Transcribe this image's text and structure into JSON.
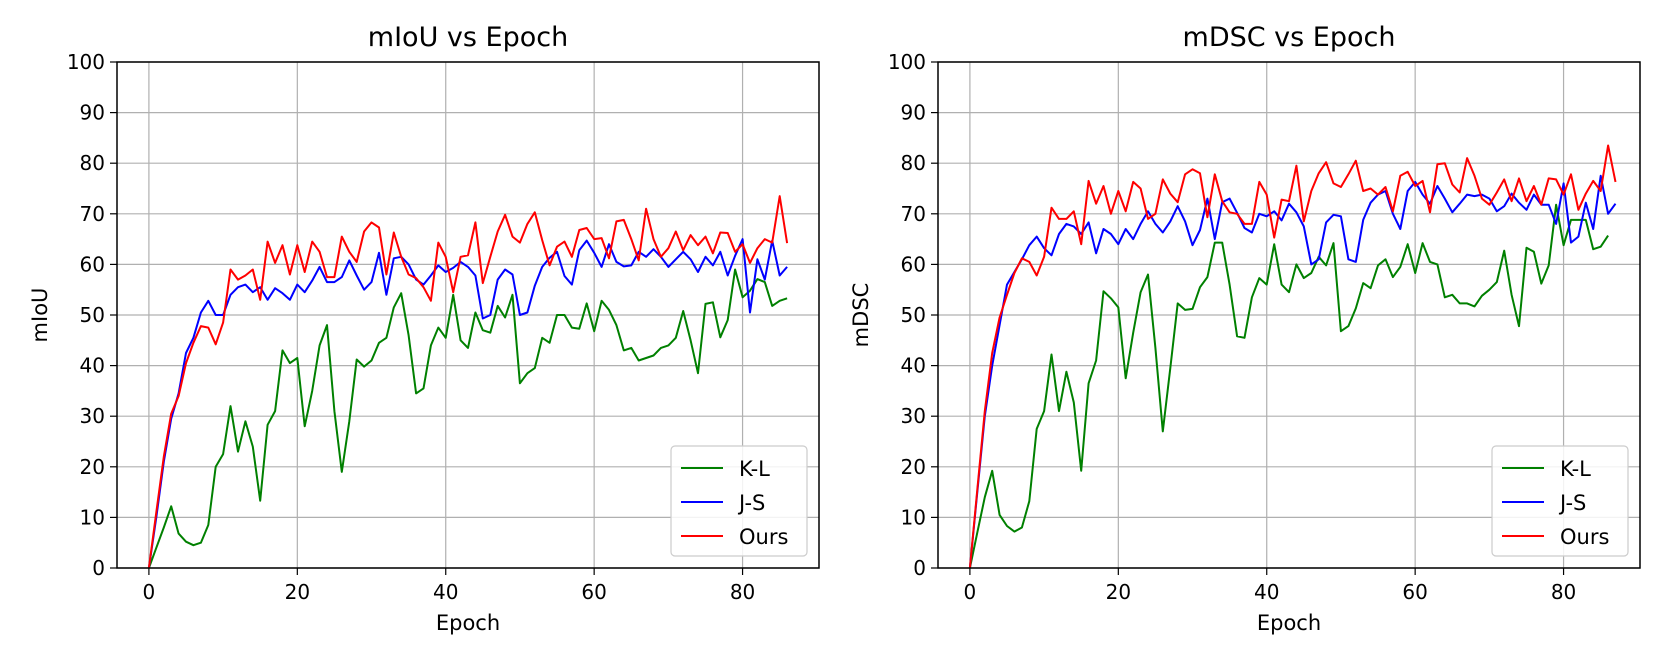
{
  "figure": {
    "background": "#ffffff",
    "grid": true,
    "grid_color": "#b0b0b0"
  },
  "chart_data": [
    {
      "type": "line",
      "title": "mIoU vs Epoch",
      "xlabel": "Epoch",
      "ylabel": "mIoU",
      "xlim": [
        -4.3,
        90.3
      ],
      "ylim": [
        0,
        100
      ],
      "xticks": [
        0,
        20,
        40,
        60,
        80
      ],
      "yticks": [
        0,
        10,
        20,
        30,
        40,
        50,
        60,
        70,
        80,
        90,
        100
      ],
      "legend": "lower-right",
      "series": [
        {
          "name": "K-L",
          "color": "#008000",
          "values": [
            0,
            4,
            8,
            12.2,
            6.8,
            5.2,
            4.5,
            5,
            8.5,
            20,
            22.5,
            32,
            23,
            29,
            24,
            13.3,
            28.3,
            31,
            43,
            40.5,
            41.5,
            28,
            35,
            44,
            48,
            31,
            19,
            29,
            41.2,
            39.8,
            41,
            44.5,
            45.5,
            51.5,
            54.3,
            46,
            34.5,
            35.5,
            44,
            47.5,
            45.5,
            54,
            45,
            43.5,
            50.5,
            47,
            46.5,
            51.8,
            49.5,
            54,
            36.5,
            38.5,
            39.5,
            45.5,
            44.5,
            50,
            50,
            47.5,
            47.3,
            52.3,
            46.8,
            52.8,
            51,
            48,
            43,
            43.5,
            41,
            41.5,
            42,
            43.5,
            44,
            45.5,
            50.8,
            45,
            38.5,
            52.2,
            52.5,
            45.6,
            49,
            59,
            53.5,
            54.8,
            57.1,
            56.5,
            51.8,
            52.8,
            53.3
          ]
        },
        {
          "name": "J-S",
          "color": "#0000ff",
          "values": [
            0,
            10,
            21,
            29.5,
            34.5,
            42.5,
            45.5,
            50.5,
            52.8,
            50,
            50,
            54,
            55.5,
            56,
            54.5,
            55.5,
            53,
            55.3,
            54.3,
            53,
            56,
            54.5,
            56.8,
            59.5,
            56.5,
            56.5,
            57.5,
            60.8,
            57.8,
            55,
            56.5,
            62.3,
            54,
            61.2,
            61.5,
            60,
            57,
            56,
            57.8,
            59.8,
            58.5,
            59.3,
            60.5,
            59.5,
            57.8,
            49.3,
            50,
            57,
            59,
            58,
            50,
            50.5,
            55.8,
            59.5,
            61.3,
            62.5,
            57.7,
            56,
            62.8,
            64.7,
            62.3,
            59.5,
            64,
            60.5,
            59.6,
            59.8,
            62.5,
            61.5,
            63,
            61.5,
            59.5,
            61,
            62.5,
            61,
            58.5,
            61.5,
            59.8,
            62.5,
            57.8,
            61.7,
            65,
            50.5,
            61,
            57,
            64.7,
            57.8,
            59.5
          ]
        },
        {
          "name": "Ours",
          "color": "#ff0000",
          "values": [
            0,
            11,
            22,
            30.5,
            34,
            40.5,
            44.5,
            47.8,
            47.5,
            44.2,
            48.5,
            59,
            57,
            57.8,
            59,
            53,
            64.5,
            60.3,
            63.8,
            58,
            63.8,
            58.5,
            64.5,
            62.5,
            57.5,
            57.5,
            65.5,
            62.5,
            60.5,
            66.5,
            68.3,
            67.3,
            58,
            66.3,
            61.5,
            58,
            57.3,
            55.5,
            52.8,
            64.3,
            61.5,
            54.5,
            61.5,
            61.8,
            68.3,
            56.3,
            61.5,
            66.5,
            69.8,
            65.5,
            64.3,
            68,
            70.3,
            64.8,
            59.8,
            63.5,
            64.5,
            61.5,
            66.8,
            67.2,
            65,
            65.2,
            61.2,
            68.5,
            68.8,
            65,
            60.8,
            71,
            65,
            61.5,
            63.2,
            66.5,
            62.8,
            65.8,
            63.8,
            65.5,
            62.2,
            66.3,
            66.2,
            62.5,
            64,
            60.3,
            63.2,
            65,
            64.3,
            73.5,
            64.2
          ]
        }
      ]
    },
    {
      "type": "line",
      "title": "mDSC vs Epoch",
      "xlabel": "Epoch",
      "ylabel": "mDSC",
      "xlim": [
        -4.3,
        90.3
      ],
      "ylim": [
        0,
        100
      ],
      "xticks": [
        0,
        20,
        40,
        60,
        80
      ],
      "yticks": [
        0,
        10,
        20,
        30,
        40,
        50,
        60,
        70,
        80,
        90,
        100
      ],
      "legend": "lower-right",
      "series": [
        {
          "name": "K-L",
          "color": "#008000",
          "values": [
            0,
            7,
            14,
            19.2,
            10.5,
            8.3,
            7.2,
            8,
            13.2,
            27.5,
            31,
            42.2,
            31,
            38.8,
            32.7,
            19.2,
            36.5,
            41,
            54.7,
            53.3,
            51.5,
            37.5,
            46.5,
            54.5,
            58,
            43.5,
            27,
            39.5,
            52.3,
            51,
            51.2,
            55.5,
            57.5,
            64.3,
            64.3,
            56,
            45.8,
            45.5,
            53.5,
            57.3,
            56,
            64,
            56,
            54.5,
            60,
            57.3,
            58.3,
            61.5,
            59.8,
            64.2,
            46.8,
            47.8,
            51.3,
            56.3,
            55.3,
            59.8,
            61,
            57.5,
            59.5,
            64,
            58.3,
            64.2,
            60.5,
            60,
            53.5,
            54,
            52.3,
            52.3,
            51.7,
            53.8,
            55,
            56.5,
            62.7,
            54,
            47.8,
            63.3,
            62.5,
            56.2,
            59.8,
            71.8,
            63.8,
            68.8,
            68.8,
            68.8,
            63,
            63.5,
            65.7
          ]
        },
        {
          "name": "J-S",
          "color": "#0000ff",
          "values": [
            0,
            15,
            30,
            40,
            48,
            56,
            58.5,
            61,
            63.8,
            65.5,
            63.2,
            61.8,
            66,
            68,
            67.5,
            66,
            68.3,
            62.2,
            67,
            66,
            64,
            67,
            65,
            68,
            70.5,
            68,
            66.3,
            68.5,
            71.5,
            68.5,
            63.8,
            66.8,
            73,
            65,
            72.3,
            73,
            70.2,
            67.2,
            66.3,
            70,
            69.5,
            70.5,
            68.7,
            72,
            70.3,
            67.5,
            60,
            61,
            68.3,
            69.8,
            69.5,
            61,
            60.5,
            68.8,
            72.2,
            73.8,
            74.5,
            70,
            67,
            74.5,
            76.3,
            73.8,
            72,
            75.5,
            73,
            70.3,
            72,
            73.8,
            73.5,
            73.8,
            73,
            70.5,
            71.5,
            74,
            72.2,
            70.8,
            73.8,
            71.8,
            71.8,
            68,
            76,
            64.3,
            65.5,
            72.2,
            67,
            77.5,
            70,
            72
          ]
        },
        {
          "name": "Ours",
          "color": "#ff0000",
          "values": [
            0,
            15.5,
            31,
            42.5,
            49.5,
            54,
            58.3,
            61.2,
            60.5,
            57.8,
            61.5,
            71.2,
            69,
            69,
            70.5,
            64,
            76.5,
            72,
            75.5,
            70,
            74.5,
            70.5,
            76.3,
            75,
            69,
            70,
            76.8,
            74,
            72.3,
            77.8,
            78.8,
            78,
            69.3,
            77.8,
            72.5,
            70.3,
            70,
            68,
            68,
            76.3,
            73.8,
            65.3,
            72.8,
            72.5,
            79.5,
            68.5,
            74.5,
            78,
            80.2,
            76,
            75.3,
            77.8,
            80.5,
            74.5,
            75,
            73.8,
            75.3,
            70.5,
            77.5,
            78.3,
            75.5,
            76.5,
            70.3,
            79.8,
            80,
            75.8,
            74.2,
            81,
            77.5,
            73,
            71.8,
            74.2,
            76.8,
            72.5,
            77,
            72.5,
            75.5,
            71.8,
            77,
            76.8,
            73.8,
            77.8,
            70.8,
            74,
            76.5,
            74.5,
            83.5,
            76.3
          ]
        }
      ]
    }
  ]
}
